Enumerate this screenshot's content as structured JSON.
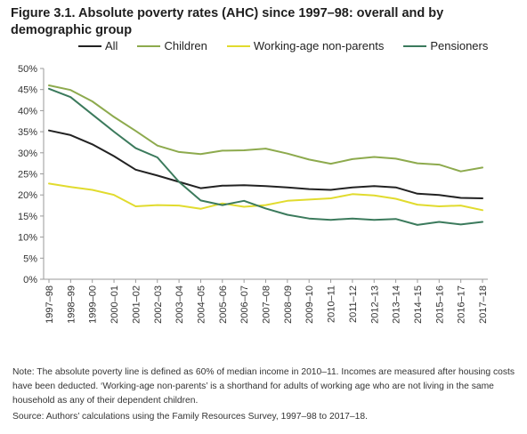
{
  "figure": {
    "title": "Figure 3.1. Absolute poverty rates (AHC) since 1997–98: overall and by demographic group",
    "note": "Note: The absolute poverty line is defined as 60% of median income in 2010–11. Incomes are measured after housing costs have been deducted. ‘Working-age non-parents’ is a shorthand for adults of working age who are not living in the same household as any of their dependent children.",
    "source": "Source: Authors’ calculations using the Family Resources Survey, 1997–98 to 2017–18."
  },
  "chart_data": {
    "type": "line",
    "title": "Figure 3.1. Absolute poverty rates (AHC) since 1997–98: overall and by demographic group",
    "xlabel": "",
    "ylabel": "",
    "ylim": [
      0,
      50
    ],
    "yticks": [
      "0%",
      "5%",
      "10%",
      "15%",
      "20%",
      "25%",
      "30%",
      "35%",
      "40%",
      "45%",
      "50%"
    ],
    "grid": false,
    "legend_position": "top",
    "categories": [
      "1997–98",
      "1998–99",
      "1999–00",
      "2000–01",
      "2001–02",
      "2002–03",
      "2003–04",
      "2004–05",
      "2005–06",
      "2006–07",
      "2007–08",
      "2008–09",
      "2009–10",
      "2010–11",
      "2011–12",
      "2012–13",
      "2013–14",
      "2014–15",
      "2015–16",
      "2016–17",
      "2017–18"
    ],
    "series": [
      {
        "name": "All",
        "color": "#222222",
        "values": [
          35.3,
          34.2,
          32.0,
          29.2,
          26.0,
          24.6,
          23.1,
          21.6,
          22.2,
          22.3,
          22.1,
          21.8,
          21.4,
          21.2,
          21.8,
          22.1,
          21.8,
          20.3,
          20.0,
          19.3,
          19.2
        ]
      },
      {
        "name": "Children",
        "color": "#8daa4d",
        "values": [
          46.0,
          44.9,
          42.2,
          38.5,
          35.2,
          31.7,
          30.2,
          29.7,
          30.5,
          30.6,
          31.0,
          29.8,
          28.4,
          27.4,
          28.5,
          29.0,
          28.6,
          27.5,
          27.2,
          25.6,
          26.5
        ]
      },
      {
        "name": "Working-age non-parents",
        "color": "#e1db2e",
        "values": [
          22.7,
          21.9,
          21.2,
          20.0,
          17.3,
          17.6,
          17.5,
          16.7,
          18.0,
          17.2,
          17.6,
          18.6,
          18.9,
          19.2,
          20.2,
          19.9,
          19.1,
          17.7,
          17.3,
          17.5,
          16.4
        ]
      },
      {
        "name": "Pensioners",
        "color": "#3b7a5c",
        "values": [
          45.2,
          43.2,
          39.1,
          35.0,
          31.1,
          28.9,
          23.1,
          18.7,
          17.6,
          18.6,
          16.8,
          15.3,
          14.4,
          14.1,
          14.4,
          14.1,
          14.3,
          12.9,
          13.6,
          13.0,
          13.6
        ]
      }
    ]
  }
}
